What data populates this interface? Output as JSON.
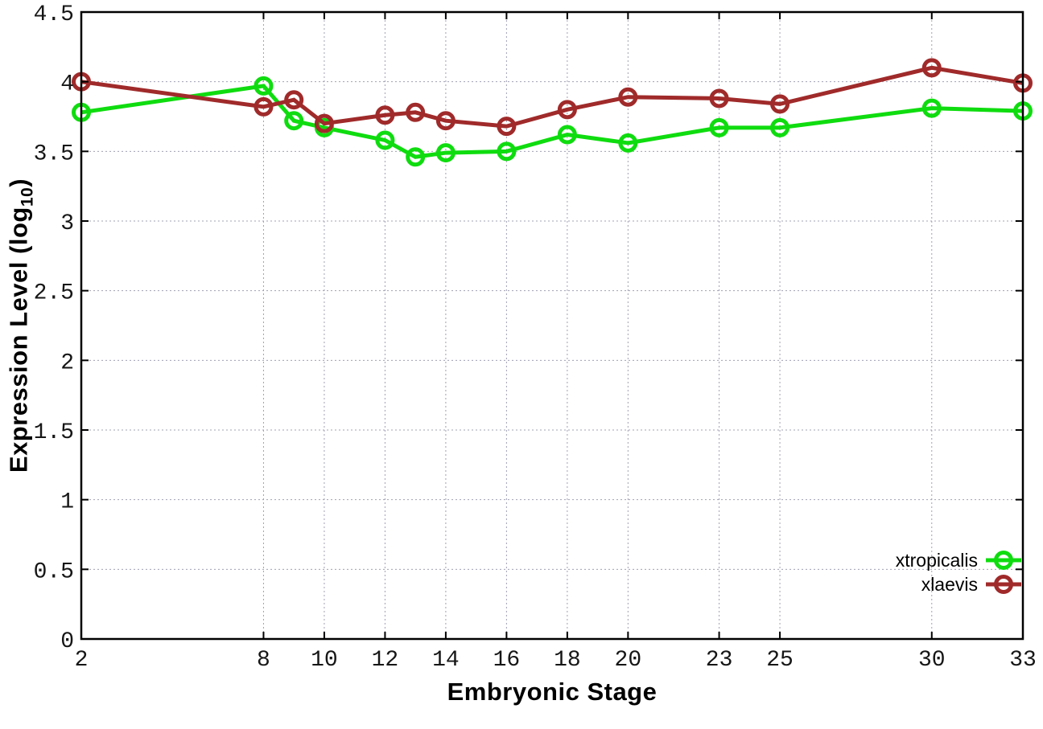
{
  "chart_data": {
    "type": "line",
    "title": "",
    "xlabel": "Embryonic Stage",
    "ylabel_prefix": "Expression Level (log",
    "ylabel_sub": "10",
    "ylabel_suffix": ")",
    "xlim": [
      2,
      33
    ],
    "ylim": [
      0,
      4.5
    ],
    "grid": true,
    "legend_position": "inside-bottom-right",
    "x": [
      2,
      8,
      9,
      10,
      12,
      13,
      14,
      16,
      18,
      20,
      23,
      25,
      30,
      33
    ],
    "xticks": [
      2,
      8,
      10,
      12,
      14,
      16,
      18,
      20,
      23,
      25,
      30,
      33
    ],
    "xtick_labels": [
      "2",
      "8",
      "10",
      "12",
      "14",
      "16",
      "18",
      "20",
      "23",
      "25",
      "30",
      "33"
    ],
    "yticks": [
      0,
      0.5,
      1,
      1.5,
      2,
      2.5,
      3,
      3.5,
      4,
      4.5
    ],
    "ytick_labels": [
      "0",
      "0.5",
      "1",
      "1.5",
      "2",
      "2.5",
      "3",
      "3.5",
      "4",
      "4.5"
    ],
    "series": [
      {
        "name": "xtropicalis",
        "color": "#0fdc0f",
        "values": [
          3.78,
          3.97,
          3.72,
          3.67,
          3.58,
          3.46,
          3.49,
          3.5,
          3.62,
          3.56,
          3.67,
          3.67,
          3.81,
          3.79
        ]
      },
      {
        "name": "xlaevis",
        "color": "#a02a2a",
        "values": [
          4.0,
          3.82,
          3.87,
          3.7,
          3.76,
          3.78,
          3.72,
          3.68,
          3.8,
          3.89,
          3.88,
          3.84,
          4.1,
          3.99
        ]
      }
    ]
  },
  "colors": {
    "background": "#ffffff",
    "grid": "#a0a0b4",
    "axis": "#000000",
    "tick_text": "#161616"
  }
}
